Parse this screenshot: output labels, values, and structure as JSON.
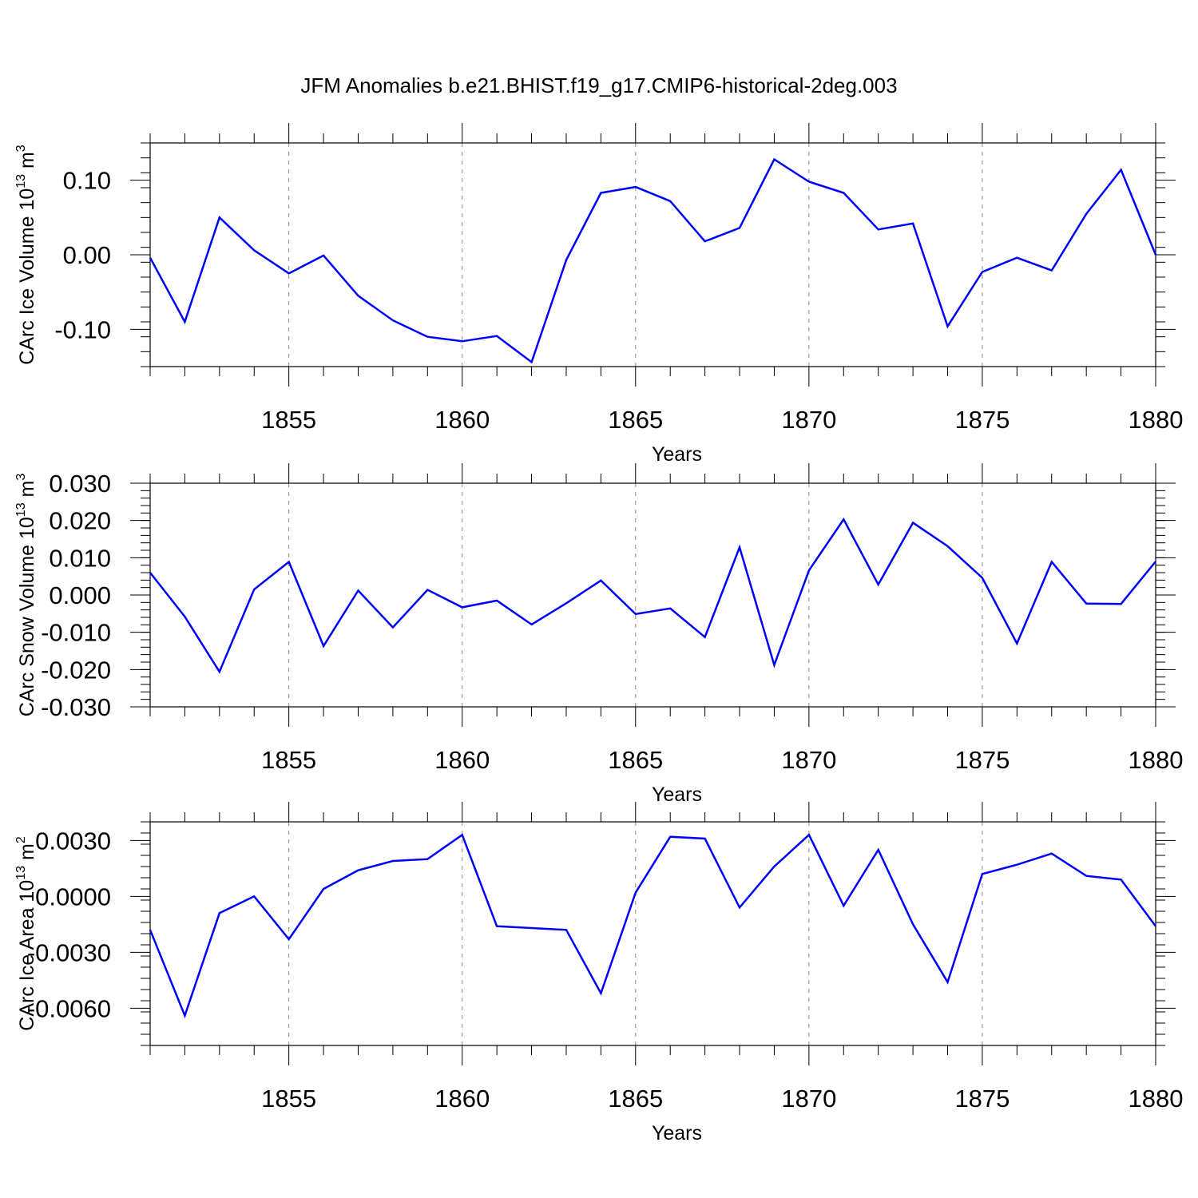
{
  "figure": {
    "title": "JFM Anomalies b.e21.BHIST.f19_g17.CMIP6-historical-2deg.003",
    "line_color": "#0000ff"
  },
  "chart_data": [
    {
      "type": "line",
      "title": "JFM Anomalies b.e21.BHIST.f19_g17.CMIP6-historical-2deg.003",
      "xlabel": "Years",
      "ylabel": "CArc Ice Volume 10",
      "ylabel_exponent": "13",
      "ylabel_unit": "m",
      "ylabel_unit_exponent": "3",
      "xlim": [
        1851,
        1880
      ],
      "ylim": [
        -0.15,
        0.15
      ],
      "x_ticks": [
        1855,
        1860,
        1865,
        1870,
        1875,
        1880
      ],
      "y_ticks": [
        -0.1,
        0.0,
        0.1
      ],
      "y_tick_labels": [
        "-0.10",
        "0.00",
        "0.10"
      ],
      "y_minor_step": 0.02,
      "grid": "vertical dashed at major x ticks",
      "x": [
        1851,
        1852,
        1853,
        1854,
        1855,
        1856,
        1857,
        1858,
        1859,
        1860,
        1861,
        1862,
        1863,
        1864,
        1865,
        1866,
        1867,
        1868,
        1869,
        1870,
        1871,
        1872,
        1873,
        1874,
        1875,
        1876,
        1877,
        1878,
        1879,
        1880
      ],
      "values": [
        -0.004,
        -0.09,
        0.05,
        0.006,
        -0.025,
        -0.001,
        -0.055,
        -0.088,
        -0.11,
        -0.116,
        -0.109,
        -0.144,
        -0.007,
        0.083,
        0.091,
        0.072,
        0.018,
        0.036,
        0.128,
        0.098,
        0.083,
        0.034,
        0.042,
        -0.096,
        -0.023,
        -0.004,
        -0.021,
        0.055,
        0.114,
        0.0
      ]
    },
    {
      "type": "line",
      "xlabel": "Years",
      "ylabel": "CArc Snow Volume 10",
      "ylabel_exponent": "13",
      "ylabel_unit": "m",
      "ylabel_unit_exponent": "3",
      "xlim": [
        1851,
        1880
      ],
      "ylim": [
        -0.03,
        0.03
      ],
      "x_ticks": [
        1855,
        1860,
        1865,
        1870,
        1875,
        1880
      ],
      "y_ticks": [
        -0.03,
        -0.02,
        -0.01,
        0.0,
        0.01,
        0.02,
        0.03
      ],
      "y_tick_labels": [
        "-0.030",
        "-0.020",
        "-0.010",
        "0.000",
        "0.010",
        "0.020",
        "0.030"
      ],
      "y_minor_step": 0.002,
      "grid": "vertical dashed at major x ticks",
      "x": [
        1851,
        1852,
        1853,
        1854,
        1855,
        1856,
        1857,
        1858,
        1859,
        1860,
        1861,
        1862,
        1863,
        1864,
        1865,
        1866,
        1867,
        1868,
        1869,
        1870,
        1871,
        1872,
        1873,
        1874,
        1875,
        1876,
        1877,
        1878,
        1879,
        1880
      ],
      "values": [
        0.006,
        -0.0058,
        -0.0206,
        0.0015,
        0.0089,
        -0.0137,
        0.0012,
        -0.0087,
        0.0014,
        -0.0033,
        -0.0015,
        -0.0079,
        -0.0022,
        0.0039,
        -0.0051,
        -0.0036,
        -0.0113,
        0.0128,
        -0.0188,
        0.0066,
        0.0203,
        0.0028,
        0.0194,
        0.0131,
        0.0046,
        -0.013,
        0.0089,
        -0.0023,
        -0.0024,
        0.009
      ]
    },
    {
      "type": "line",
      "xlabel": "Years",
      "ylabel": "CArc Ice Area 10",
      "ylabel_exponent": "13",
      "ylabel_unit": "m",
      "ylabel_unit_exponent": "2",
      "xlim": [
        1851,
        1880
      ],
      "ylim": [
        -0.008,
        0.004
      ],
      "x_ticks": [
        1855,
        1860,
        1865,
        1870,
        1875,
        1880
      ],
      "y_ticks": [
        -0.006,
        -0.003,
        0.0,
        0.003
      ],
      "y_tick_labels": [
        "-0.0060",
        "-0.0030",
        "0.0000",
        "0.0030"
      ],
      "y_minor_step": 0.0006,
      "grid": "vertical dashed at major x ticks",
      "x": [
        1851,
        1852,
        1853,
        1854,
        1855,
        1856,
        1857,
        1858,
        1859,
        1860,
        1861,
        1862,
        1863,
        1864,
        1865,
        1866,
        1867,
        1868,
        1869,
        1870,
        1871,
        1872,
        1873,
        1874,
        1875,
        1876,
        1877,
        1878,
        1879,
        1880
      ],
      "values": [
        -0.0018,
        -0.0064,
        -0.0009,
        0.0,
        -0.0023,
        0.0004,
        0.0014,
        0.0019,
        0.002,
        0.0033,
        -0.0016,
        -0.0017,
        -0.0018,
        -0.0052,
        0.0002,
        0.0032,
        0.0031,
        -0.0006,
        0.0016,
        0.0033,
        -0.0005,
        0.0025,
        -0.0015,
        -0.0046,
        0.0012,
        0.0017,
        0.0023,
        0.0011,
        0.0009,
        -0.0016
      ]
    }
  ]
}
